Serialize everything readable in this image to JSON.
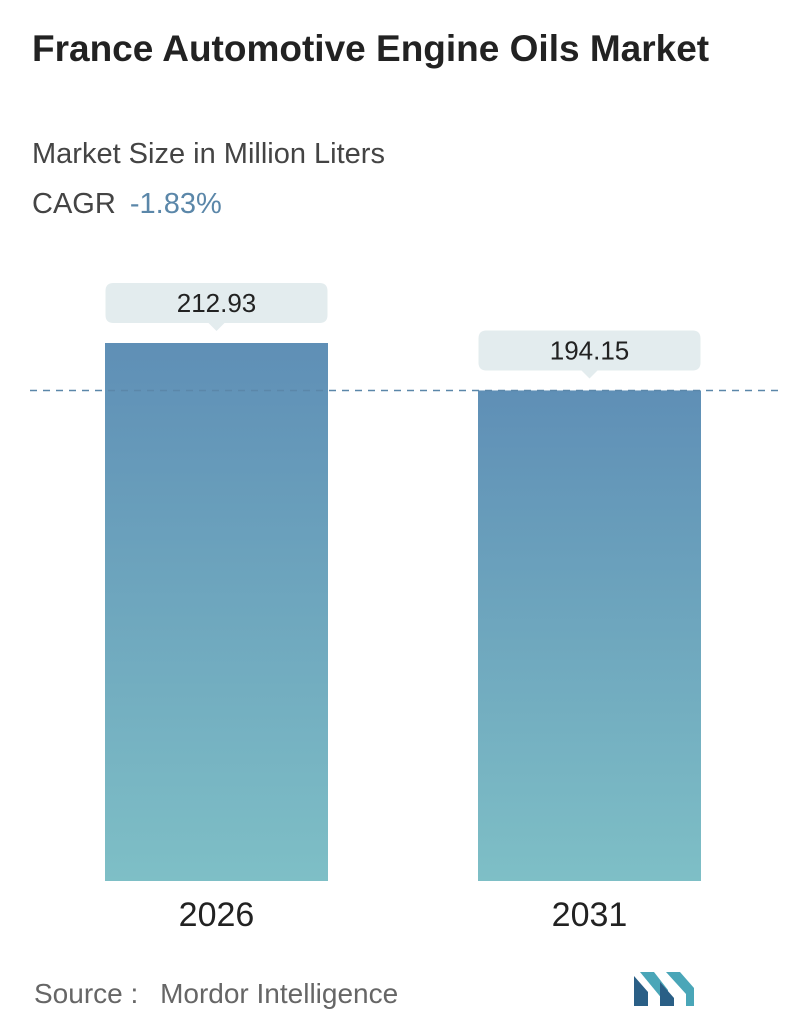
{
  "header": {
    "title": "France Automotive Engine Oils Market",
    "subtitle": "Market Size in Million Liters",
    "cagr_label": "CAGR",
    "cagr_value": "-1.83%"
  },
  "chart_data": {
    "type": "bar",
    "categories": [
      "2026",
      "2031"
    ],
    "values": [
      212.93,
      194.15
    ],
    "value_labels": [
      "212.93",
      "194.15"
    ],
    "title": "France Automotive Engine Oils Market",
    "subtitle": "Market Size in Million Liters",
    "xlabel": "",
    "ylabel": "",
    "ylim": [
      0,
      212.93
    ],
    "grid": false,
    "legend": "none",
    "reference_line": {
      "value": 194.15,
      "style": "dashed"
    },
    "colors": {
      "bar_top": "#5f8fb6",
      "bar_bottom": "#7ebfc6",
      "label_box": "#e3ecee",
      "reference_line": "#5b87a9"
    }
  },
  "footer": {
    "source_label": "Source :",
    "source_value": "Mordor Intelligence",
    "logo_icon": "mordor-intelligence-logo-icon"
  }
}
